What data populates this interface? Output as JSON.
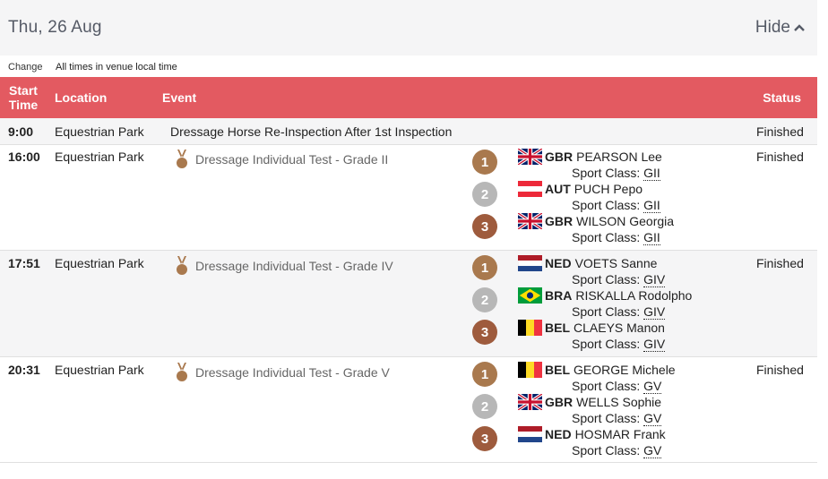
{
  "header": {
    "date": "Thu, 26 Aug",
    "hide_label": "Hide"
  },
  "info": {
    "change": "Change",
    "timezone_note": "All times in venue local time"
  },
  "columns": {
    "start_time": "Start Time",
    "location": "Location",
    "event": "Event",
    "status": "Status"
  },
  "sport_class_label": "Sport Class:",
  "rows": [
    {
      "time": "9:00",
      "location": "Equestrian Park",
      "event": "Dressage Horse Re-Inspection After 1st Inspection",
      "status": "Finished"
    },
    {
      "time": "16:00",
      "location": "Equestrian Park",
      "event": "Dressage Individual Test - Grade II",
      "status": "Finished",
      "medals": [
        {
          "rank": "1",
          "noc": "GBR",
          "name": "PEARSON Lee",
          "class": "GII"
        },
        {
          "rank": "2",
          "noc": "AUT",
          "name": "PUCH Pepo",
          "class": "GII"
        },
        {
          "rank": "3",
          "noc": "GBR",
          "name": "WILSON Georgia",
          "class": "GII"
        }
      ]
    },
    {
      "time": "17:51",
      "location": "Equestrian Park",
      "event": "Dressage Individual Test - Grade IV",
      "status": "Finished",
      "medals": [
        {
          "rank": "1",
          "noc": "NED",
          "name": "VOETS Sanne",
          "class": "GIV"
        },
        {
          "rank": "2",
          "noc": "BRA",
          "name": "RISKALLA Rodolpho",
          "class": "GIV"
        },
        {
          "rank": "3",
          "noc": "BEL",
          "name": "CLAEYS Manon",
          "class": "GIV"
        }
      ]
    },
    {
      "time": "20:31",
      "location": "Equestrian Park",
      "event": "Dressage Individual Test - Grade V",
      "status": "Finished",
      "medals": [
        {
          "rank": "1",
          "noc": "BEL",
          "name": "GEORGE Michele",
          "class": "GV"
        },
        {
          "rank": "2",
          "noc": "GBR",
          "name": "WELLS Sophie",
          "class": "GV"
        },
        {
          "rank": "3",
          "noc": "NED",
          "name": "HOSMAR Frank",
          "class": "GV"
        }
      ]
    }
  ],
  "icons": {
    "hide": "chevron-up-icon",
    "event_medal": "medal-icon",
    "flags": [
      "flag-gbr-icon",
      "flag-aut-icon",
      "flag-ned-icon",
      "flag-bra-icon",
      "flag-bel-icon"
    ]
  },
  "colors": {
    "header_bar": "#e35a61",
    "gold": "#a9794e",
    "silver": "#b7b7b7",
    "bronze": "#9e5b3d"
  }
}
